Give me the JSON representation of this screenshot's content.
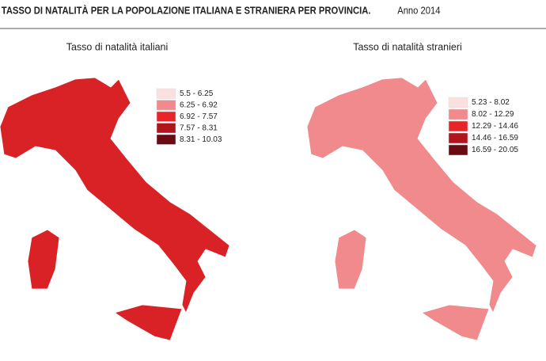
{
  "header": {
    "title": "TASSO DI NATALITÀ PER LA POPOLAZIONE ITALIANA E STRANIERA PER PROVINCIA.",
    "year": "Anno 2014"
  },
  "maps": [
    {
      "title": "Tasso di natalità italiani",
      "legend": [
        {
          "label": "5.5 - 6.25",
          "color": "#fbe0e0"
        },
        {
          "label": "6.25 - 6.92",
          "color": "#f08a8c"
        },
        {
          "label": "6.92 - 7.57",
          "color": "#e8262a"
        },
        {
          "label": "7.57 - 8.31",
          "color": "#b0141c"
        },
        {
          "label": "8.31 - 10.03",
          "color": "#6a0a12"
        }
      ]
    },
    {
      "title": "Tasso di natalità  stranieri",
      "legend": [
        {
          "label": "5.23 - 8.02",
          "color": "#fbe0e0"
        },
        {
          "label": "8.02 - 12.29",
          "color": "#f08a8c"
        },
        {
          "label": "12.29 - 14.46",
          "color": "#e8262a"
        },
        {
          "label": "14.46 - 16.59",
          "color": "#b0141c"
        },
        {
          "label": "16.59 - 20.05",
          "color": "#6a0a12"
        }
      ]
    }
  ]
}
